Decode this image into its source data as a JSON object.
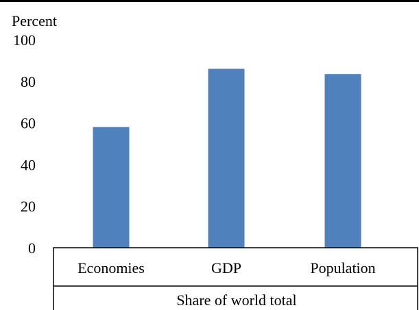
{
  "chart_data": {
    "type": "bar",
    "title": "",
    "ylabel": "Percent",
    "xlabel": "Share of world total",
    "categories": [
      "Economies",
      "GDP",
      "Population"
    ],
    "values": [
      58,
      86,
      83.5
    ],
    "ylim": [
      0,
      100
    ],
    "yticks": [
      0,
      20,
      40,
      60,
      80,
      100
    ],
    "grid": false,
    "legend": "none",
    "bar_color": "#4F81BD"
  }
}
